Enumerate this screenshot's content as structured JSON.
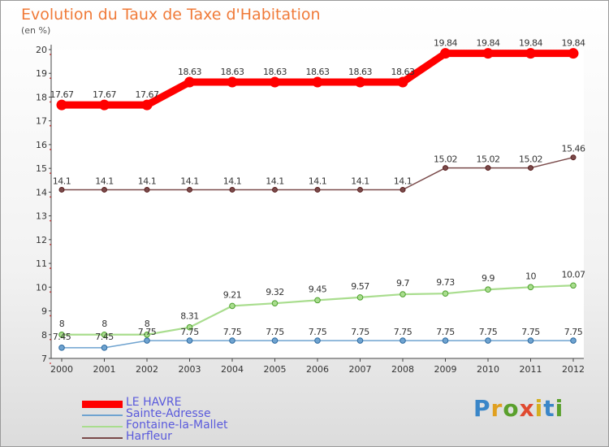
{
  "title": "Evolution du Taux de Taxe d'Habitation",
  "unit": "(en %)",
  "brand": "Proxiti",
  "chart_data": {
    "type": "line",
    "x": [
      "2000",
      "2001",
      "2002",
      "2003",
      "2004",
      "2005",
      "2006",
      "2007",
      "2008",
      "2009",
      "2010",
      "2011",
      "2012"
    ],
    "ylim": [
      7,
      20
    ],
    "yticks": [
      7,
      8,
      9,
      10,
      11,
      12,
      13,
      14,
      15,
      16,
      17,
      18,
      19,
      20
    ],
    "series": [
      {
        "name": "LE HAVRE",
        "color": "#ff0000",
        "values": [
          17.67,
          17.67,
          17.67,
          18.63,
          18.63,
          18.63,
          18.63,
          18.63,
          18.63,
          19.84,
          19.84,
          19.84,
          19.84
        ],
        "labels": [
          "17.67",
          "17.67",
          "17.67",
          "18.63",
          "18.63",
          "18.63",
          "18.63",
          "18.63",
          "18.63",
          "19.84",
          "19.84",
          "19.84",
          "19.84"
        ]
      },
      {
        "name": "Sainte-Adresse",
        "color": "#6fa3d0",
        "values": [
          7.45,
          7.45,
          7.75,
          7.75,
          7.75,
          7.75,
          7.75,
          7.75,
          7.75,
          7.75,
          7.75,
          7.75,
          7.75
        ],
        "labels": [
          "7.45",
          "7.45",
          "7.75",
          "7.75",
          "7.75",
          "7.75",
          "7.75",
          "7.75",
          "7.75",
          "7.75",
          "7.75",
          "7.75",
          "7.75"
        ]
      },
      {
        "name": "Fontaine-la-Mallet",
        "color": "#a9dd8e",
        "values": [
          8,
          8,
          8,
          8.31,
          9.21,
          9.32,
          9.45,
          9.57,
          9.7,
          9.73,
          9.9,
          10,
          10.07
        ],
        "labels": [
          "8",
          "8",
          "8",
          "8.31",
          "9.21",
          "9.32",
          "9.45",
          "9.57",
          "9.7",
          "9.73",
          "9.9",
          "10",
          "10.07"
        ]
      },
      {
        "name": "Harfleur",
        "color": "#7a4a4a",
        "values": [
          14.1,
          14.1,
          14.1,
          14.1,
          14.1,
          14.1,
          14.1,
          14.1,
          14.1,
          15.02,
          15.02,
          15.02,
          15.46
        ],
        "labels": [
          "14.1",
          "14.1",
          "14.1",
          "14.1",
          "14.1",
          "14.1",
          "14.1",
          "14.1",
          "14.1",
          "15.02",
          "15.02",
          "15.02",
          "15.46"
        ]
      }
    ]
  }
}
